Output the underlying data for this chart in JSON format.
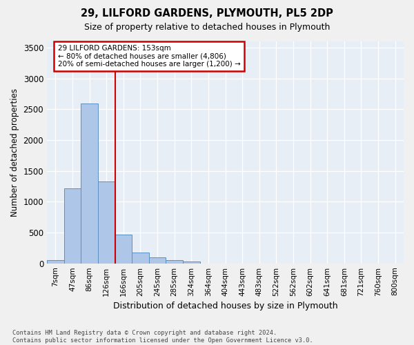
{
  "title1": "29, LILFORD GARDENS, PLYMOUTH, PL5 2DP",
  "title2": "Size of property relative to detached houses in Plymouth",
  "xlabel": "Distribution of detached houses by size in Plymouth",
  "ylabel": "Number of detached properties",
  "footnote1": "Contains HM Land Registry data © Crown copyright and database right 2024.",
  "footnote2": "Contains public sector information licensed under the Open Government Licence v3.0.",
  "bin_labels": [
    "7sqm",
    "47sqm",
    "86sqm",
    "126sqm",
    "166sqm",
    "205sqm",
    "245sqm",
    "285sqm",
    "324sqm",
    "364sqm",
    "404sqm",
    "443sqm",
    "483sqm",
    "522sqm",
    "562sqm",
    "602sqm",
    "641sqm",
    "681sqm",
    "721sqm",
    "760sqm",
    "800sqm"
  ],
  "bar_values": [
    50,
    1220,
    2590,
    1330,
    470,
    180,
    100,
    55,
    30,
    0,
    0,
    0,
    0,
    0,
    0,
    0,
    0,
    0,
    0,
    0,
    0
  ],
  "bar_color": "#aec6e8",
  "bar_edge_color": "#5a8fc0",
  "vline_position": 3.5,
  "vline_color": "#cc0000",
  "ylim_max": 3600,
  "yticks": [
    0,
    500,
    1000,
    1500,
    2000,
    2500,
    3000,
    3500
  ],
  "annotation_line1": "29 LILFORD GARDENS: 153sqm",
  "annotation_line2": "← 80% of detached houses are smaller (4,806)",
  "annotation_line3": "20% of semi-detached houses are larger (1,200) →",
  "annotation_box_edgecolor": "#cc0000",
  "bg_color": "#e8eef5",
  "grid_color": "#ffffff",
  "fig_bg_color": "#f0f0f0"
}
